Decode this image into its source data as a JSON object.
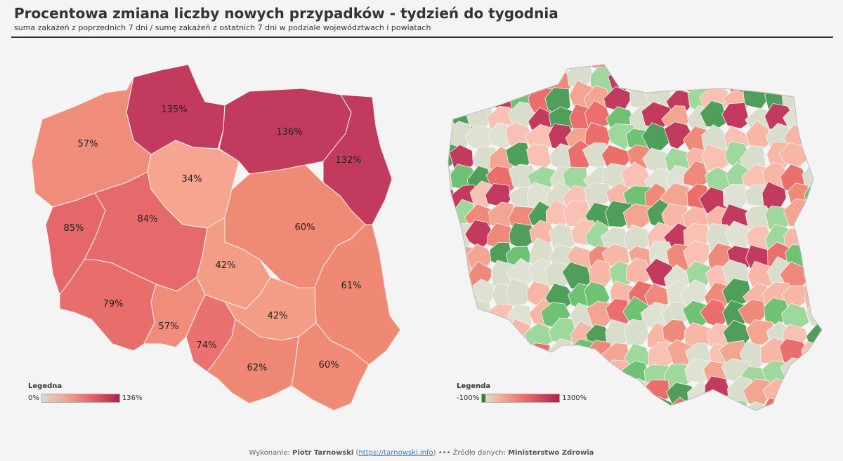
{
  "header": {
    "title": "Procentowa zmiana liczby nowych przypadków - tydzień do tygodnia",
    "subtitle": "suma zakażeń z poprzednich  7 dni / sumę zakażeń z ostatnich 7 dni w podziale województwach i powiatach"
  },
  "map_left": {
    "regions": [
      {
        "name": "pomorskie",
        "value": "135%",
        "color": "#c23b5e"
      },
      {
        "name": "warmińsko-mazurskie",
        "value": "136%",
        "color": "#c23b5e"
      },
      {
        "name": "podlaskie",
        "value": "132%",
        "color": "#c23b5e"
      },
      {
        "name": "zachodniopomorskie",
        "value": "57%",
        "color": "#ef8d7a"
      },
      {
        "name": "kujawsko-pomorskie",
        "value": "34%",
        "color": "#f6a590"
      },
      {
        "name": "mazowieckie",
        "value": "60%",
        "color": "#ef8a75"
      },
      {
        "name": "lubuskie",
        "value": "85%",
        "color": "#e5676a"
      },
      {
        "name": "wielkopolskie",
        "value": "84%",
        "color": "#e66a6b"
      },
      {
        "name": "łódzkie",
        "value": "42%",
        "color": "#f39c86"
      },
      {
        "name": "lubelskie",
        "value": "61%",
        "color": "#ef8974"
      },
      {
        "name": "dolnośląskie",
        "value": "79%",
        "color": "#e86e6c"
      },
      {
        "name": "opolskie",
        "value": "57%",
        "color": "#ef8d7a"
      },
      {
        "name": "śląskie",
        "value": "74%",
        "color": "#e97270"
      },
      {
        "name": "świętokrzyskie",
        "value": "42%",
        "color": "#f39c86"
      },
      {
        "name": "małopolskie",
        "value": "62%",
        "color": "#ee8773"
      },
      {
        "name": "podkarpackie",
        "value": "60%",
        "color": "#ef8a75"
      }
    ],
    "legend": {
      "title": "Legedna",
      "min": "0%",
      "max": "136%"
    }
  },
  "map_right": {
    "legend": {
      "title": "Legenda",
      "min": "-100%",
      "max": "1300%"
    },
    "palette": [
      "#d9ddcc",
      "#d9ddcc",
      "#d9ddcc",
      "#f8c1b3",
      "#f4a592",
      "#ef8a7a",
      "#e96e6c",
      "#9fd89c",
      "#6fc274",
      "#4f9f5b",
      "#dfe1d3",
      "#f7b6a6",
      "#c23b5e"
    ]
  },
  "footer": {
    "prefix": "Wykonanie:",
    "author": "Piotr Tarnowski",
    "link": "https://tarnowski.info",
    "dots": "•••",
    "source_label": "Źródło danych:",
    "source": "Ministerstwo Zdrowia"
  }
}
